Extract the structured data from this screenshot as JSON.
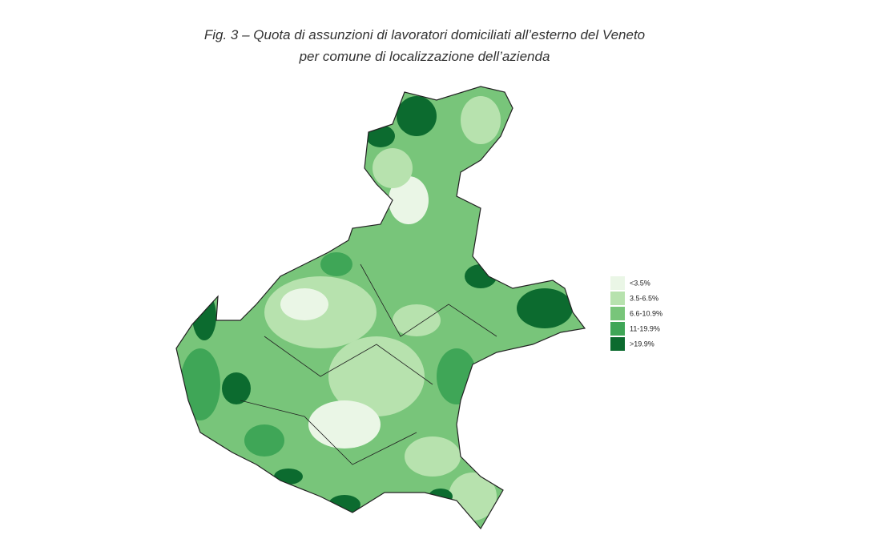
{
  "title": [
    "Fig. 3 – Quota di assunzioni di lavoratori domiciliati all’esterno del Veneto",
    "per comune di localizzazione dell’azienda"
  ],
  "legend": {
    "items": [
      {
        "label": "<3.5%",
        "color": "#eaf6e6"
      },
      {
        "label": "3.5-6.5%",
        "color": "#b7e2ae"
      },
      {
        "label": "6.6-10.9%",
        "color": "#78c57a"
      },
      {
        "label": "11-19.9%",
        "color": "#3fa657"
      },
      {
        "label": ">19.9%",
        "color": "#0c6b2f"
      }
    ]
  }
}
